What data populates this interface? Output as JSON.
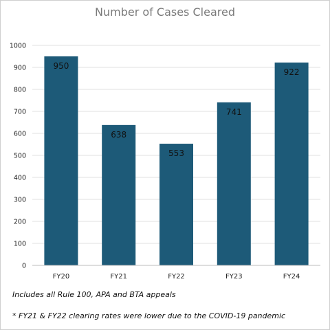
{
  "chart_data": {
    "type": "bar",
    "title": "Number of Cases Cleared",
    "categories": [
      "FY20",
      "FY21",
      "FY22",
      "FY23",
      "FY24"
    ],
    "values": [
      950,
      638,
      553,
      741,
      922
    ],
    "data_labels": [
      "950",
      "638",
      "553",
      "741",
      "922"
    ],
    "ylim": [
      0,
      1000
    ],
    "yticks": [
      0,
      100,
      200,
      300,
      400,
      500,
      600,
      700,
      800,
      900,
      1000
    ],
    "xlabel": "",
    "ylabel": "",
    "grid": true,
    "legend": "none",
    "bar_color": "#1d5a78",
    "grid_color": "#e2e2e2"
  },
  "notes": {
    "line1": "Includes all Rule 100, APA and BTA appeals",
    "line2": "* FY21 & FY22 clearing rates were lower due to the COVID-19 pandemic"
  }
}
